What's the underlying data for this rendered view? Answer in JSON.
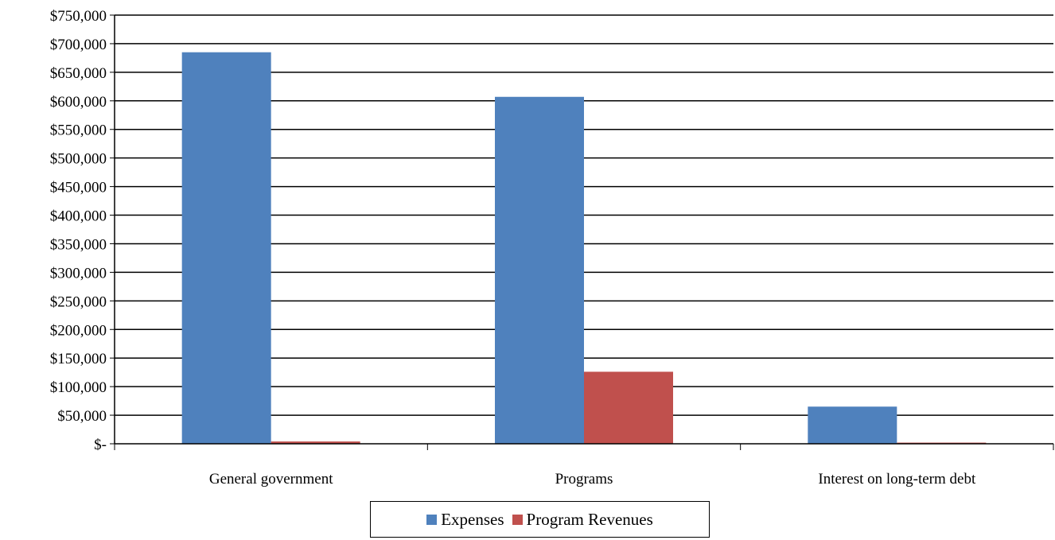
{
  "chart_data": {
    "type": "bar",
    "categories": [
      "General government",
      "Programs",
      "Interest on long-term debt"
    ],
    "series": [
      {
        "name": "Expenses",
        "color": "#4F81BD",
        "values": [
          685000,
          607000,
          65000
        ]
      },
      {
        "name": "Program Revenues",
        "color": "#C0504D",
        "values": [
          4000,
          126000,
          2000
        ]
      }
    ],
    "ylim": [
      0,
      750000
    ],
    "ytick_step": 50000,
    "yticks": [
      "$-",
      "$50,000",
      "$100,000",
      "$150,000",
      "$200,000",
      "$250,000",
      "$300,000",
      "$350,000",
      "$400,000",
      "$450,000",
      "$500,000",
      "$550,000",
      "$600,000",
      "$650,000",
      "$700,000",
      "$750,000"
    ],
    "grid": true,
    "legend_position": "bottom-center"
  }
}
